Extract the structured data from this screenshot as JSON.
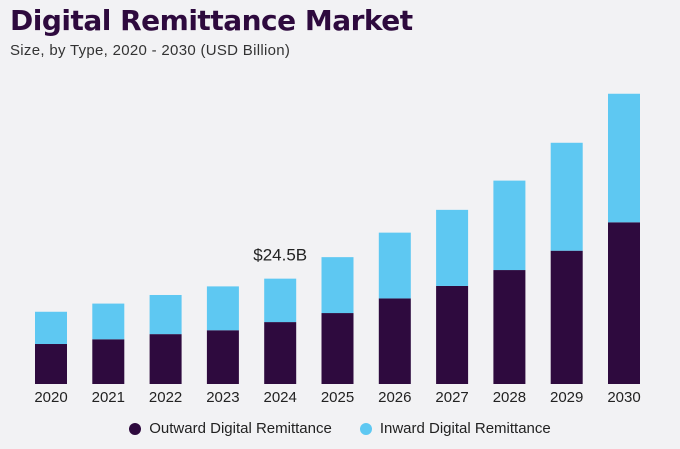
{
  "chart_data": {
    "type": "bar",
    "stacked": true,
    "title": "Digital Remittance Market",
    "subtitle": "Size, by Type, 2020 - 2030 (USD Billion)",
    "categories": [
      "2020",
      "2021",
      "2022",
      "2023",
      "2024",
      "2025",
      "2026",
      "2027",
      "2028",
      "2029",
      "2030"
    ],
    "series": [
      {
        "name": "Outward Digital Remittance",
        "color": "#2e0a3e",
        "values": [
          9.3,
          10.4,
          11.6,
          12.5,
          14.4,
          16.5,
          19.9,
          22.8,
          26.5,
          31.0,
          37.6
        ]
      },
      {
        "name": "Inward Digital Remittance",
        "color": "#5ec8f2",
        "values": [
          7.5,
          8.3,
          9.1,
          10.2,
          10.1,
          13.0,
          15.3,
          17.7,
          20.8,
          25.1,
          29.9
        ]
      }
    ],
    "annotations": [
      {
        "category": "2024",
        "text": "$24.5B"
      }
    ],
    "ylim": [
      0,
      70
    ],
    "grid": false,
    "legend": "bottom-center"
  }
}
